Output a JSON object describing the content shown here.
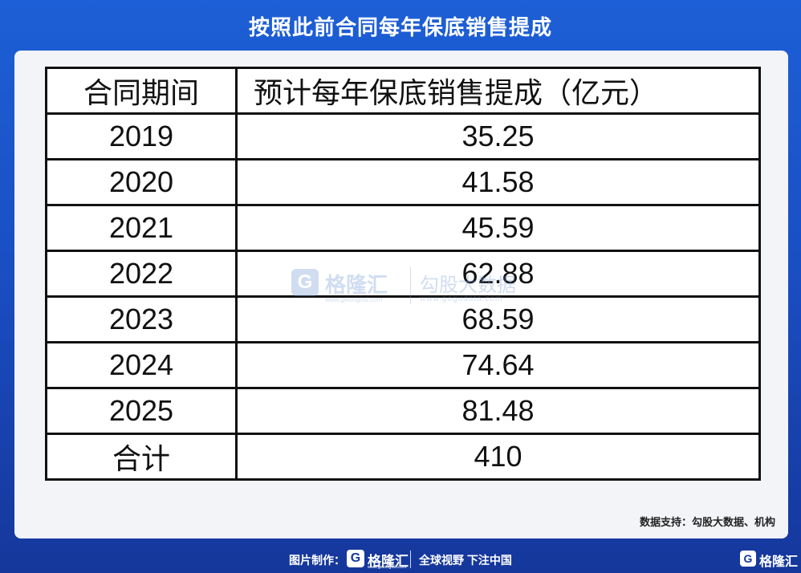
{
  "title": "按照此前合同每年保底销售提成",
  "table": {
    "headers": [
      "合同期间",
      "预计每年保底销售提成（亿元）"
    ],
    "rows": [
      [
        "2019",
        "35.25"
      ],
      [
        "2020",
        "41.58"
      ],
      [
        "2021",
        "45.59"
      ],
      [
        "2022",
        "62.88"
      ],
      [
        "2023",
        "68.59"
      ],
      [
        "2024",
        "74.64"
      ],
      [
        "2025",
        "81.48"
      ],
      [
        "合计",
        "410"
      ]
    ]
  },
  "source": "数据支持：勾股大数据、机构",
  "watermark": {
    "logo_letter": "G",
    "brand": "格隆汇",
    "brand_url": "www.gelonghui.com",
    "partner": "勾股大数据",
    "partner_url": "www.gogudata.com"
  },
  "footer": {
    "prefix": "图片制作：",
    "logo_letter": "G",
    "brand": "格隆汇",
    "brand_url": "www.gelonghui.com",
    "slogan": "全球视野 下注中国",
    "corner_logo_letter": "G",
    "corner_brand": "格隆汇"
  },
  "colors": {
    "background": "#1a4fc4",
    "card": "#f2f4f8",
    "text": "#111111"
  }
}
